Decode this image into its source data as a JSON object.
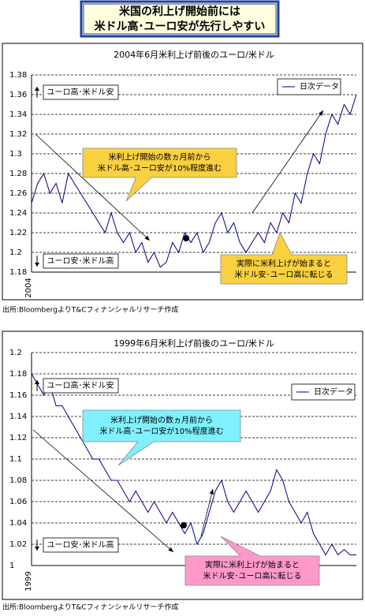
{
  "header": [
    "米国の利上げ開始前には",
    "米ドル高･ユーロ安が先行しやすい"
  ],
  "chart_data": [
    {
      "type": "line",
      "title": "2004年6月米利上げ前後のユーロ/米ドル",
      "categories": [
        "2004",
        null,
        null,
        null,
        null,
        null,
        null,
        null,
        null,
        null,
        null,
        null,
        null,
        null,
        null,
        null,
        null,
        null,
        null,
        null,
        null,
        null,
        null,
        null,
        null,
        null,
        null,
        null,
        null,
        null,
        null,
        null,
        null,
        null,
        null,
        null,
        null,
        null,
        null,
        null,
        null,
        null,
        null,
        null,
        null,
        null,
        null,
        null,
        null,
        null,
        null,
        null,
        null,
        null
      ],
      "series": [
        {
          "name": "日次データ",
          "color": "#000080",
          "values": [
            1.25,
            1.27,
            1.28,
            1.26,
            1.27,
            1.25,
            1.28,
            1.27,
            1.26,
            1.25,
            1.24,
            1.23,
            1.22,
            1.24,
            1.22,
            1.21,
            1.22,
            1.2,
            1.21,
            1.19,
            1.2,
            1.185,
            1.19,
            1.21,
            1.2,
            1.22,
            1.21,
            1.22,
            1.2,
            1.21,
            1.23,
            1.24,
            1.22,
            1.23,
            1.21,
            1.2,
            1.21,
            1.22,
            1.21,
            1.23,
            1.22,
            1.24,
            1.23,
            1.26,
            1.25,
            1.28,
            1.3,
            1.29,
            1.32,
            1.34,
            1.33,
            1.35,
            1.34,
            1.36
          ]
        }
      ],
      "ylim": [
        1.18,
        1.38
      ],
      "yticks": [
        1.18,
        1.2,
        1.22,
        1.24,
        1.26,
        1.28,
        1.3,
        1.32,
        1.34,
        1.36,
        1.38
      ],
      "grid": true,
      "labels": [
        "ユーロ高･米ドル安",
        "ユーロ安･米ドル高"
      ],
      "callouts": [
        [
          "米利上げ開始の数ヵ月前から",
          "米ドル高･ユーロ安が10%程度進む"
        ],
        [
          "実際に米利上げが始まると",
          "米ドル安･ユーロ高に転じる"
        ]
      ],
      "source": "出所:BloombergよりT&Cフィナンシャルリサーチ作成"
    },
    {
      "type": "line",
      "title": "1999年6月米利上げ前後のユーロ/米ドル",
      "categories": [
        "1999",
        null,
        null,
        null,
        null,
        null,
        null,
        null,
        null,
        null,
        null,
        null,
        null,
        null,
        null,
        null,
        null,
        null,
        null,
        null,
        null,
        null,
        null,
        null,
        null,
        null,
        null,
        null,
        null,
        null,
        null,
        null,
        null,
        null,
        null,
        null,
        null,
        null,
        null,
        null,
        null,
        null,
        null,
        null,
        null,
        null,
        null,
        null,
        null,
        null,
        null,
        null,
        null,
        null
      ],
      "series": [
        {
          "name": "日次データ",
          "color": "#000080",
          "values": [
            1.18,
            1.17,
            1.16,
            1.17,
            1.15,
            1.15,
            1.14,
            1.13,
            1.12,
            1.11,
            1.1,
            1.1,
            1.09,
            1.08,
            1.08,
            1.07,
            1.06,
            1.07,
            1.06,
            1.05,
            1.06,
            1.05,
            1.04,
            1.05,
            1.04,
            1.03,
            1.04,
            1.02,
            1.03,
            1.05,
            1.07,
            1.08,
            1.06,
            1.05,
            1.06,
            1.07,
            1.06,
            1.05,
            1.06,
            1.07,
            1.09,
            1.08,
            1.06,
            1.05,
            1.04,
            1.05,
            1.03,
            1.02,
            1.01,
            1.02,
            1.01,
            1.015,
            1.01,
            1.01
          ]
        }
      ],
      "ylim": [
        1,
        1.2
      ],
      "yticks": [
        1,
        1.02,
        1.04,
        1.06,
        1.08,
        1.1,
        1.12,
        1.14,
        1.16,
        1.18,
        1.2
      ],
      "grid": true,
      "labels": [
        "ユーロ高･米ドル安",
        "ユーロ安･米ドル高"
      ],
      "callouts": [
        [
          "米利上げ開始の数ヵ月前から",
          "米ドル高･ユーロ安が10%程度進む"
        ],
        [
          "実際に米利上げが始まると",
          "米ドル安･ユーロ高に転じる"
        ]
      ],
      "source": "出所:BloombergよりT&Cフィナンシャルリサーチ作成"
    }
  ]
}
